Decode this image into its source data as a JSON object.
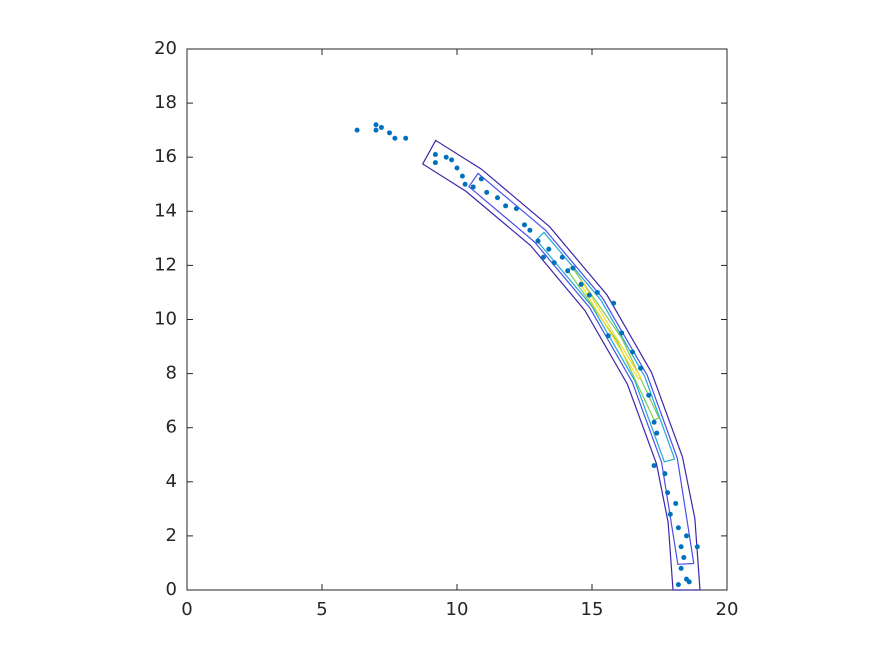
{
  "chart_data": {
    "type": "scatter",
    "xlim": [
      0,
      20
    ],
    "xticks": [
      0,
      5,
      10,
      15,
      20
    ],
    "ylim": [
      0,
      20
    ],
    "yticks": [
      0,
      2,
      4,
      6,
      8,
      10,
      12,
      14,
      16,
      18,
      20
    ],
    "color": "#0072bd",
    "x": [
      6.3,
      7,
      7,
      7.2,
      7.5,
      7.7,
      8.1,
      9.2,
      9.2,
      9.6,
      9.8,
      10,
      10.2,
      10.3,
      10.6,
      10.9,
      11.1,
      11.5,
      11.8,
      12.2,
      12.5,
      12.7,
      13,
      13.2,
      13.4,
      13.6,
      13.9,
      14.1,
      14.3,
      14.6,
      14.9,
      15.2,
      15.8,
      15.6,
      16.1,
      16.5,
      16.8,
      17.1,
      17.3,
      17.4,
      17.3,
      17.7,
      17.8,
      18.1,
      17.9,
      18.2,
      18.5,
      18.3,
      18.9,
      18.4,
      18.3,
      18.5,
      18.2,
      18.6
    ],
    "y": [
      17,
      17.2,
      17,
      17.1,
      16.9,
      16.7,
      16.7,
      16.1,
      15.8,
      16,
      15.9,
      15.6,
      15.3,
      15,
      14.9,
      15.2,
      14.7,
      14.5,
      14.2,
      14.1,
      13.5,
      13.3,
      12.9,
      12.3,
      12.6,
      12.1,
      12.3,
      11.8,
      11.9,
      11.3,
      10.9,
      11,
      10.6,
      9.4,
      9.5,
      8.8,
      8.2,
      7.2,
      6.2,
      5.8,
      4.6,
      4.3,
      3.6,
      3.2,
      2.8,
      2.3,
      2,
      1.6,
      1.6,
      1.2,
      0.8,
      0.4,
      0.2,
      0.3
    ],
    "contours": [
      {
        "color": "#3e26a8",
        "x": [
          19,
          18.81,
          18.35,
          17.21,
          15.56,
          13.43,
          10.9,
          9.21,
          8.73,
          10.33,
          12.73,
          14.74,
          16.31,
          17.39,
          17.82,
          18,
          19
        ],
        "y": [
          0,
          2.64,
          4.92,
          8.03,
          10.9,
          13.43,
          15.56,
          16.62,
          15.75,
          14.74,
          12.73,
          10.33,
          7.61,
          4.66,
          2.5,
          0,
          0
        ]
      },
      {
        "color": "#4a4ee8",
        "x": [
          18.77,
          18.16,
          17.04,
          15.4,
          13.29,
          10.78,
          10.44,
          12.87,
          14.91,
          16.49,
          17.58,
          18.18,
          18.77
        ],
        "y": [
          0.98,
          4.87,
          7.95,
          10.78,
          13.29,
          15.4,
          14.91,
          12.87,
          10.44,
          7.69,
          4.71,
          0.95,
          0.98
        ]
      },
      {
        "color": "#1fa8d8",
        "x": [
          18.06,
          16.95,
          15.32,
          13.22,
          12.94,
          14.99,
          16.59,
          17.68,
          18.06
        ],
        "y": [
          4.84,
          7.9,
          10.73,
          13.22,
          12.94,
          10.5,
          7.73,
          4.74,
          4.84
        ]
      },
      {
        "color": "#7ccb5c",
        "x": [
          17.48,
          16.11,
          14.25,
          14.09,
          15.93,
          17.3,
          17.48
        ],
        "y": [
          6.36,
          9.3,
          11.96,
          11.83,
          9.2,
          6.29,
          6.36
        ]
      },
      {
        "color": "#f9d92a",
        "x": [
          16.81,
          14.62,
          14.54,
          16.72,
          16.81
        ],
        "y": [
          7.84,
          11.43,
          11.37,
          7.8,
          7.84
        ]
      }
    ]
  }
}
